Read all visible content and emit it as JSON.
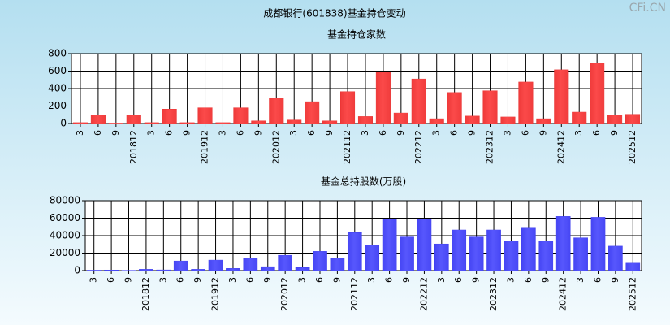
{
  "title": "成都银行(601838)基金持仓变动",
  "watermark": "CFi.CN",
  "chart_data": [
    {
      "type": "bar",
      "title": "基金持仓家数",
      "color": "#e02828",
      "categories": [
        "3",
        "6",
        "9",
        "201812",
        "3",
        "6",
        "9",
        "201912",
        "3",
        "6",
        "9",
        "202012",
        "3",
        "6",
        "9",
        "202112",
        "3",
        "6",
        "9",
        "202212",
        "3",
        "6",
        "9",
        "202312",
        "3",
        "6",
        "9",
        "202412",
        "3",
        "6",
        "9",
        "202512"
      ],
      "values": [
        10,
        95,
        5,
        95,
        10,
        165,
        10,
        180,
        10,
        180,
        30,
        290,
        40,
        250,
        30,
        365,
        80,
        590,
        120,
        510,
        55,
        355,
        85,
        375,
        75,
        475,
        55,
        615,
        130,
        695,
        95,
        105
      ],
      "ylim": [
        0,
        800
      ],
      "yticks": [
        0,
        200,
        400,
        600,
        800
      ],
      "grid": true
    },
    {
      "type": "bar",
      "title": "基金总持股数(万股)",
      "color": "#3030e8",
      "categories": [
        "3",
        "6",
        "9",
        "201812",
        "3",
        "6",
        "9",
        "201912",
        "3",
        "6",
        "9",
        "202012",
        "3",
        "6",
        "9",
        "202112",
        "3",
        "6",
        "9",
        "202212",
        "3",
        "6",
        "9",
        "202312",
        "3",
        "6",
        "9",
        "202412",
        "3",
        "6",
        "9",
        "202512"
      ],
      "values": [
        500,
        700,
        300,
        1500,
        800,
        11000,
        1500,
        12000,
        2500,
        14000,
        4500,
        17500,
        3500,
        22000,
        14000,
        43500,
        29500,
        59000,
        38500,
        59000,
        30500,
        46500,
        38500,
        46500,
        33500,
        49500,
        33500,
        62000,
        37500,
        61000,
        28000,
        8500
      ],
      "ylim": [
        0,
        80000
      ],
      "yticks": [
        0,
        20000,
        40000,
        60000,
        80000
      ],
      "grid": true
    }
  ]
}
